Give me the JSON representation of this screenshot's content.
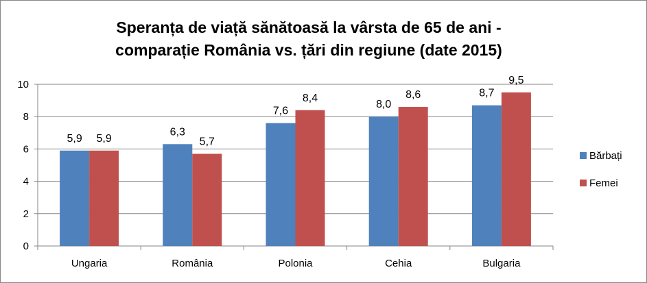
{
  "chart_data": {
    "type": "bar",
    "title_lines": [
      "Speranța de viață sănătoasă la vârsta de 65 de ani -",
      "comparație România vs. țări din regiune (date 2015)"
    ],
    "categories": [
      "Ungaria",
      "România",
      "Polonia",
      "Cehia",
      "Bulgaria"
    ],
    "series": [
      {
        "name": "Bărbați",
        "color": "#4F81BD",
        "values": [
          5.9,
          6.3,
          7.6,
          8.0,
          8.7
        ],
        "labels": [
          "5,9",
          "6,3",
          "7,6",
          "8,0",
          "8,7"
        ]
      },
      {
        "name": "Femei",
        "color": "#C0504D",
        "values": [
          5.9,
          5.7,
          8.4,
          8.6,
          9.5
        ],
        "labels": [
          "5,9",
          "5,7",
          "8,4",
          "8,6",
          "9,5"
        ]
      }
    ],
    "ylim": [
      0,
      10
    ],
    "yticks": [
      0,
      2,
      4,
      6,
      8,
      10
    ],
    "grid": true,
    "legend_position": "right"
  }
}
